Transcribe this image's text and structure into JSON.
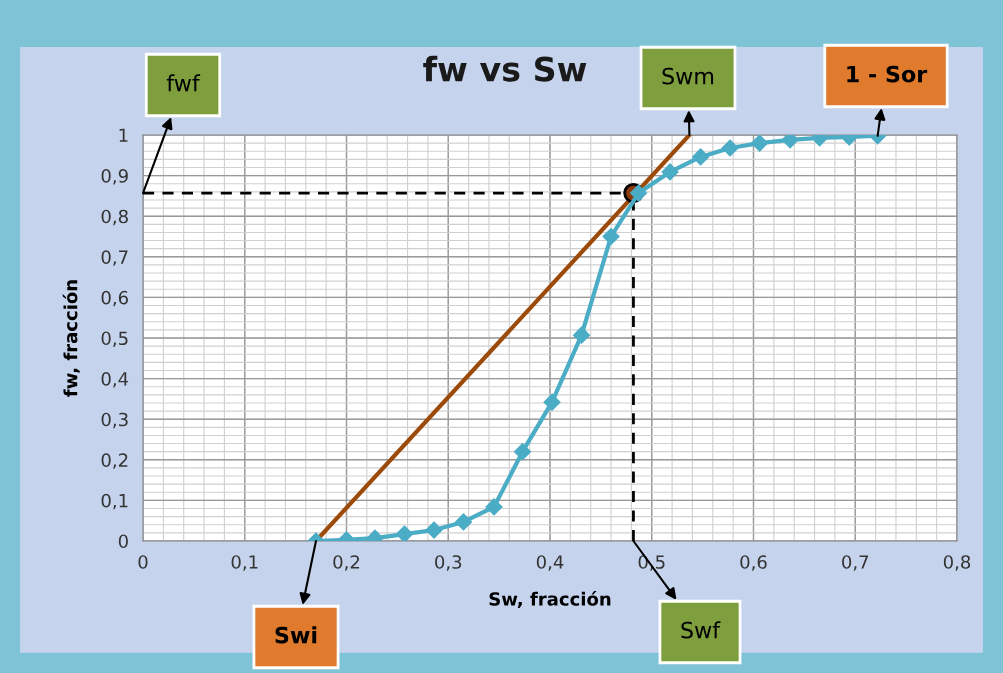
{
  "chart_data": {
    "type": "line",
    "title": "fw vs Sw",
    "xlabel": "Sw, fracción",
    "ylabel": "fw, fracción",
    "xlim": [
      0,
      0.8
    ],
    "ylim": [
      0,
      1
    ],
    "xticks": [
      0,
      {
        "value": 0.1,
        "label": "0,1"
      },
      {
        "value": 0.2,
        "label": "0,2"
      },
      {
        "value": 0.3,
        "label": "0,3"
      },
      {
        "value": 0.4,
        "label": "0,4"
      },
      {
        "value": 0.5,
        "label": "0,5"
      },
      {
        "value": 0.6,
        "label": "0,6"
      },
      {
        "value": 0.7,
        "label": "0,7"
      },
      {
        "value": 0.8,
        "label": "0,8"
      }
    ],
    "yticks": [
      0,
      {
        "value": 0.1,
        "label": "0,1"
      },
      {
        "value": 0.2,
        "label": "0,2"
      },
      {
        "value": 0.3,
        "label": "0,3"
      },
      {
        "value": 0.4,
        "label": "0,4"
      },
      {
        "value": 0.5,
        "label": "0,5"
      },
      {
        "value": 0.6,
        "label": "0,6"
      },
      {
        "value": 0.7,
        "label": "0,7"
      },
      {
        "value": 0.8,
        "label": "0,8"
      },
      {
        "value": 0.9,
        "label": "0,9"
      },
      1
    ],
    "grid": true,
    "legend": false,
    "series": [
      {
        "color": "#4bacc6",
        "marker": "diamond",
        "line_style": "solid",
        "x": [
          0.17,
          0.2,
          0.228,
          0.257,
          0.286,
          0.315,
          0.345,
          0.373,
          0.402,
          0.431,
          0.46,
          0.487,
          0.518,
          0.548,
          0.577,
          0.606,
          0.636,
          0.665,
          0.694,
          0.722
        ],
        "values": [
          0,
          0.003,
          0.007,
          0.017,
          0.027,
          0.047,
          0.084,
          0.22,
          0.342,
          0.507,
          0.75,
          0.857,
          0.909,
          0.946,
          0.968,
          0.98,
          0.988,
          0.993,
          0.995,
          0.998
        ]
      },
      {
        "type": "line",
        "color": "#9c4a0a",
        "marker": "none",
        "line_style": "solid",
        "x": [
          0.17,
          0.537
        ],
        "values": [
          0,
          1
        ]
      },
      {
        "type": "line",
        "color": "#000000",
        "marker": "none",
        "line_style": "dashed",
        "x": [
          0,
          0.482
        ],
        "values": [
          0.857,
          0.857
        ]
      },
      {
        "type": "line",
        "color": "#000000",
        "marker": "none",
        "line_style": "dashed",
        "x": [
          0.482,
          0.482
        ],
        "values": [
          0,
          0.857
        ]
      },
      {
        "type": "scatter",
        "color": "#8b3a0a",
        "marker": "circle",
        "x": [
          0.482
        ],
        "values": [
          0.857
        ]
      }
    ],
    "annotations": [
      {
        "text": "fwf",
        "x": 0,
        "y": 0.857
      },
      {
        "text": "Swm",
        "x": 0.537,
        "y": 1
      },
      {
        "text": "1 - Sor",
        "x": 0.722,
        "y": 0.998
      },
      {
        "text": "Swi",
        "x": 0.17,
        "y": 0
      },
      {
        "text": "Swf",
        "x": 0.482,
        "y": 0
      }
    ]
  }
}
